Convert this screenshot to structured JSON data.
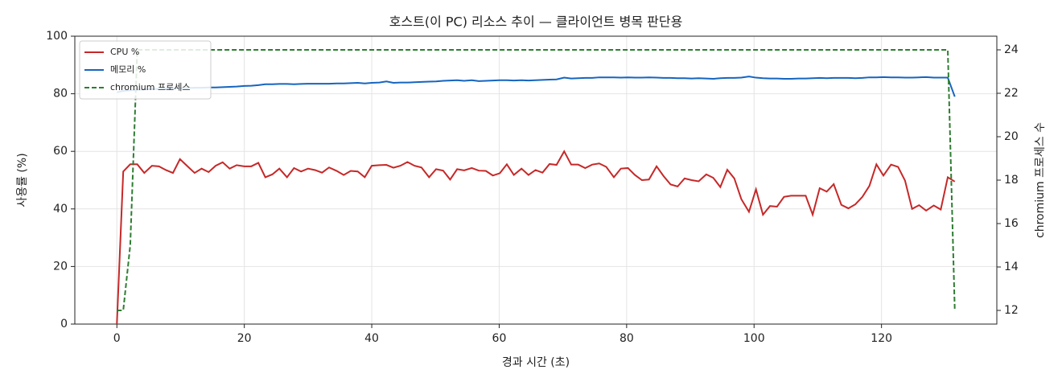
{
  "chart_data": {
    "type": "line",
    "title": "호스트(이 PC) 리소스 추이 — 클라이언트 병목 판단용",
    "x_label": "경과 시간 (초)",
    "y_label": "사용률 (%)",
    "y2_label": "chromium 프로세스 수",
    "x": [
      0,
      1.0,
      2.1,
      3.2,
      4.3,
      5.5,
      6.6,
      7.7,
      8.8,
      9.9,
      11.0,
      12.2,
      13.3,
      14.4,
      15.5,
      16.6,
      17.7,
      18.8,
      20.0,
      21.1,
      22.2,
      23.3,
      24.4,
      25.5,
      26.7,
      27.8,
      28.9,
      30.0,
      31.1,
      32.2,
      33.3,
      34.5,
      35.6,
      36.7,
      37.8,
      38.9,
      40.0,
      41.2,
      42.3,
      43.4,
      44.5,
      45.6,
      46.7,
      47.8,
      49.0,
      50.1,
      51.2,
      52.3,
      53.4,
      54.5,
      55.7,
      56.8,
      57.9,
      59.0,
      60.1,
      61.2,
      62.3,
      63.5,
      64.6,
      65.7,
      66.8,
      67.9,
      69.0,
      70.2,
      71.3,
      72.4,
      73.5,
      74.6,
      75.7,
      76.8,
      78.0,
      79.1,
      80.2,
      81.3,
      82.4,
      83.5,
      84.7,
      85.8,
      86.9,
      88.0,
      89.1,
      90.2,
      91.3,
      92.5,
      93.6,
      94.7,
      95.8,
      96.9,
      98.0,
      99.2,
      100.3,
      101.4,
      102.5,
      103.6,
      104.7,
      105.8,
      107.0,
      108.1,
      109.2,
      110.3,
      111.4,
      112.5,
      113.7,
      114.8,
      115.9,
      117.0,
      118.1,
      119.2,
      120.3,
      121.5,
      122.6,
      123.7,
      124.8,
      125.9,
      127.0,
      128.2,
      129.3,
      130.4,
      131.5
    ],
    "series": [
      {
        "name": "CPU %",
        "color": "#c62828",
        "axis": "y",
        "dash": false,
        "values": [
          0,
          53,
          55.5,
          55.5,
          52.5,
          55,
          54.8,
          53.5,
          52.5,
          57.3,
          55,
          52.5,
          54,
          52.8,
          55,
          56.2,
          54,
          55.2,
          54.8,
          54.8,
          56,
          51,
          52,
          54,
          51,
          54.2,
          53,
          54,
          53.5,
          52.6,
          54.4,
          53.2,
          51.8,
          53.2,
          53,
          51,
          55,
          55.2,
          55.3,
          54.3,
          55,
          56.3,
          55,
          54.4,
          51,
          53.8,
          53.3,
          50.2,
          53.8,
          53.4,
          54.2,
          53.3,
          53.2,
          51.6,
          52.4,
          55.5,
          51.8,
          54,
          51.8,
          53.5,
          52.6,
          55.6,
          55.3,
          60,
          55.4,
          55.4,
          54.2,
          55.4,
          55.8,
          54.6,
          51,
          54,
          54.2,
          51.8,
          50,
          50.2,
          54.8,
          51.4,
          48.5,
          47.8,
          50.6,
          50,
          49.6,
          52,
          50.8,
          47.6,
          53.6,
          50.6,
          43.4,
          39,
          46.8,
          38,
          41,
          40.8,
          44.2,
          44.6,
          44.6,
          44.6,
          38,
          47.2,
          46,
          48.6,
          41.4,
          40.2,
          41.6,
          44.2,
          48,
          55.5,
          51.6,
          55.4,
          54.6,
          49.8,
          40,
          41.3,
          39.4,
          41.2,
          39.8,
          51,
          49.5
        ]
      },
      {
        "name": "메모리 %",
        "color": "#1565c0",
        "axis": "y",
        "dash": false,
        "values": [
          80.5,
          81.0,
          81.2,
          81.4,
          81.5,
          81.6,
          81.7,
          81.8,
          81.9,
          82.0,
          82.0,
          82.1,
          82.1,
          82.2,
          82.2,
          82.3,
          82.4,
          82.5,
          82.7,
          82.8,
          83.0,
          83.3,
          83.3,
          83.4,
          83.4,
          83.3,
          83.4,
          83.5,
          83.5,
          83.5,
          83.5,
          83.6,
          83.6,
          83.7,
          83.8,
          83.6,
          83.8,
          83.9,
          84.3,
          83.8,
          83.9,
          83.9,
          84.0,
          84.1,
          84.2,
          84.3,
          84.5,
          84.6,
          84.7,
          84.5,
          84.7,
          84.4,
          84.5,
          84.6,
          84.7,
          84.7,
          84.6,
          84.7,
          84.6,
          84.7,
          84.8,
          84.9,
          85.0,
          85.6,
          85.3,
          85.4,
          85.5,
          85.5,
          85.7,
          85.7,
          85.7,
          85.6,
          85.7,
          85.6,
          85.6,
          85.7,
          85.6,
          85.5,
          85.5,
          85.4,
          85.4,
          85.3,
          85.4,
          85.3,
          85.2,
          85.4,
          85.5,
          85.5,
          85.6,
          86.0,
          85.6,
          85.4,
          85.3,
          85.3,
          85.2,
          85.2,
          85.3,
          85.3,
          85.4,
          85.5,
          85.4,
          85.5,
          85.5,
          85.5,
          85.4,
          85.5,
          85.7,
          85.7,
          85.8,
          85.7,
          85.7,
          85.6,
          85.6,
          85.7,
          85.8,
          85.6,
          85.6,
          85.6,
          79.0
        ]
      },
      {
        "name": "chromium 프로세스",
        "color": "#2e7d32",
        "axis": "y2",
        "dash": true,
        "values": [
          12,
          12,
          15,
          24,
          24,
          24,
          24,
          24,
          24,
          24,
          24,
          24,
          24,
          24,
          24,
          24,
          24,
          24,
          24,
          24,
          24,
          24,
          24,
          24,
          24,
          24,
          24,
          24,
          24,
          24,
          24,
          24,
          24,
          24,
          24,
          24,
          24,
          24,
          24,
          24,
          24,
          24,
          24,
          24,
          24,
          24,
          24,
          24,
          24,
          24,
          24,
          24,
          24,
          24,
          24,
          24,
          24,
          24,
          24,
          24,
          24,
          24,
          24,
          24,
          24,
          24,
          24,
          24,
          24,
          24,
          24,
          24,
          24,
          24,
          24,
          24,
          24,
          24,
          24,
          24,
          24,
          24,
          24,
          24,
          24,
          24,
          24,
          24,
          24,
          24,
          24,
          24,
          24,
          24,
          24,
          24,
          24,
          24,
          24,
          24,
          24,
          24,
          24,
          24,
          24,
          24,
          24,
          24,
          24,
          24,
          24,
          24,
          24,
          24,
          24,
          24,
          24,
          24,
          12
        ]
      }
    ],
    "xlim": [
      -6.6,
      138.1
    ],
    "xticks": [
      0,
      20,
      40,
      60,
      80,
      100,
      120
    ],
    "ylim": [
      0,
      100
    ],
    "yticks": [
      0,
      20,
      40,
      60,
      80,
      100
    ],
    "y2lim": [
      11.37,
      24.63
    ],
    "y2ticks": [
      12,
      14,
      16,
      18,
      20,
      22,
      24
    ],
    "grid": true,
    "legend": "upper-left"
  }
}
